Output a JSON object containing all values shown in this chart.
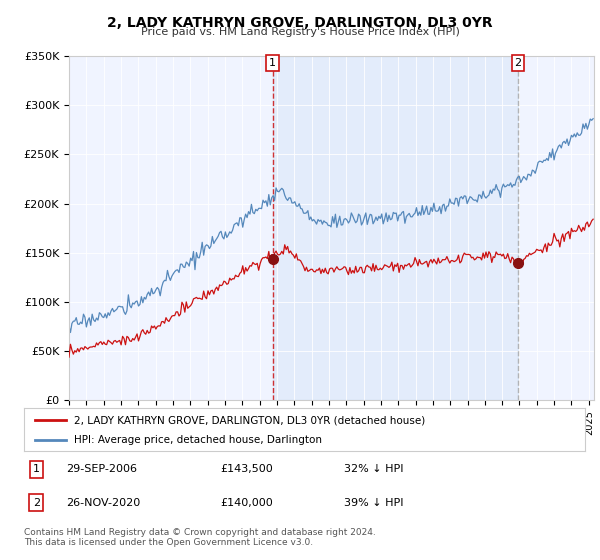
{
  "title": "2, LADY KATHRYN GROVE, DARLINGTON, DL3 0YR",
  "subtitle": "Price paid vs. HM Land Registry's House Price Index (HPI)",
  "ylim": [
    0,
    350000
  ],
  "xlim_start": 1995.0,
  "xlim_end": 2025.3,
  "hpi_color": "#5588bb",
  "hpi_fill_color": "#ddeeff",
  "price_color": "#cc1111",
  "vline1_color": "#cc1111",
  "vline2_color": "#aaaaaa",
  "dot_color": "#881111",
  "legend_label_price": "2, LADY KATHRYN GROVE, DARLINGTON, DL3 0YR (detached house)",
  "legend_label_hpi": "HPI: Average price, detached house, Darlington",
  "transaction1_x": 2006.75,
  "transaction1_y": 143500,
  "transaction2_x": 2020.92,
  "transaction2_y": 140000,
  "footer_text": "Contains HM Land Registry data © Crown copyright and database right 2024.\nThis data is licensed under the Open Government Licence v3.0.",
  "table_rows": [
    {
      "num": "1",
      "date": "29-SEP-2006",
      "price": "£143,500",
      "hpi": "32% ↓ HPI"
    },
    {
      "num": "2",
      "date": "26-NOV-2020",
      "price": "£140,000",
      "hpi": "39% ↓ HPI"
    }
  ],
  "background_color": "#f0f4ff"
}
